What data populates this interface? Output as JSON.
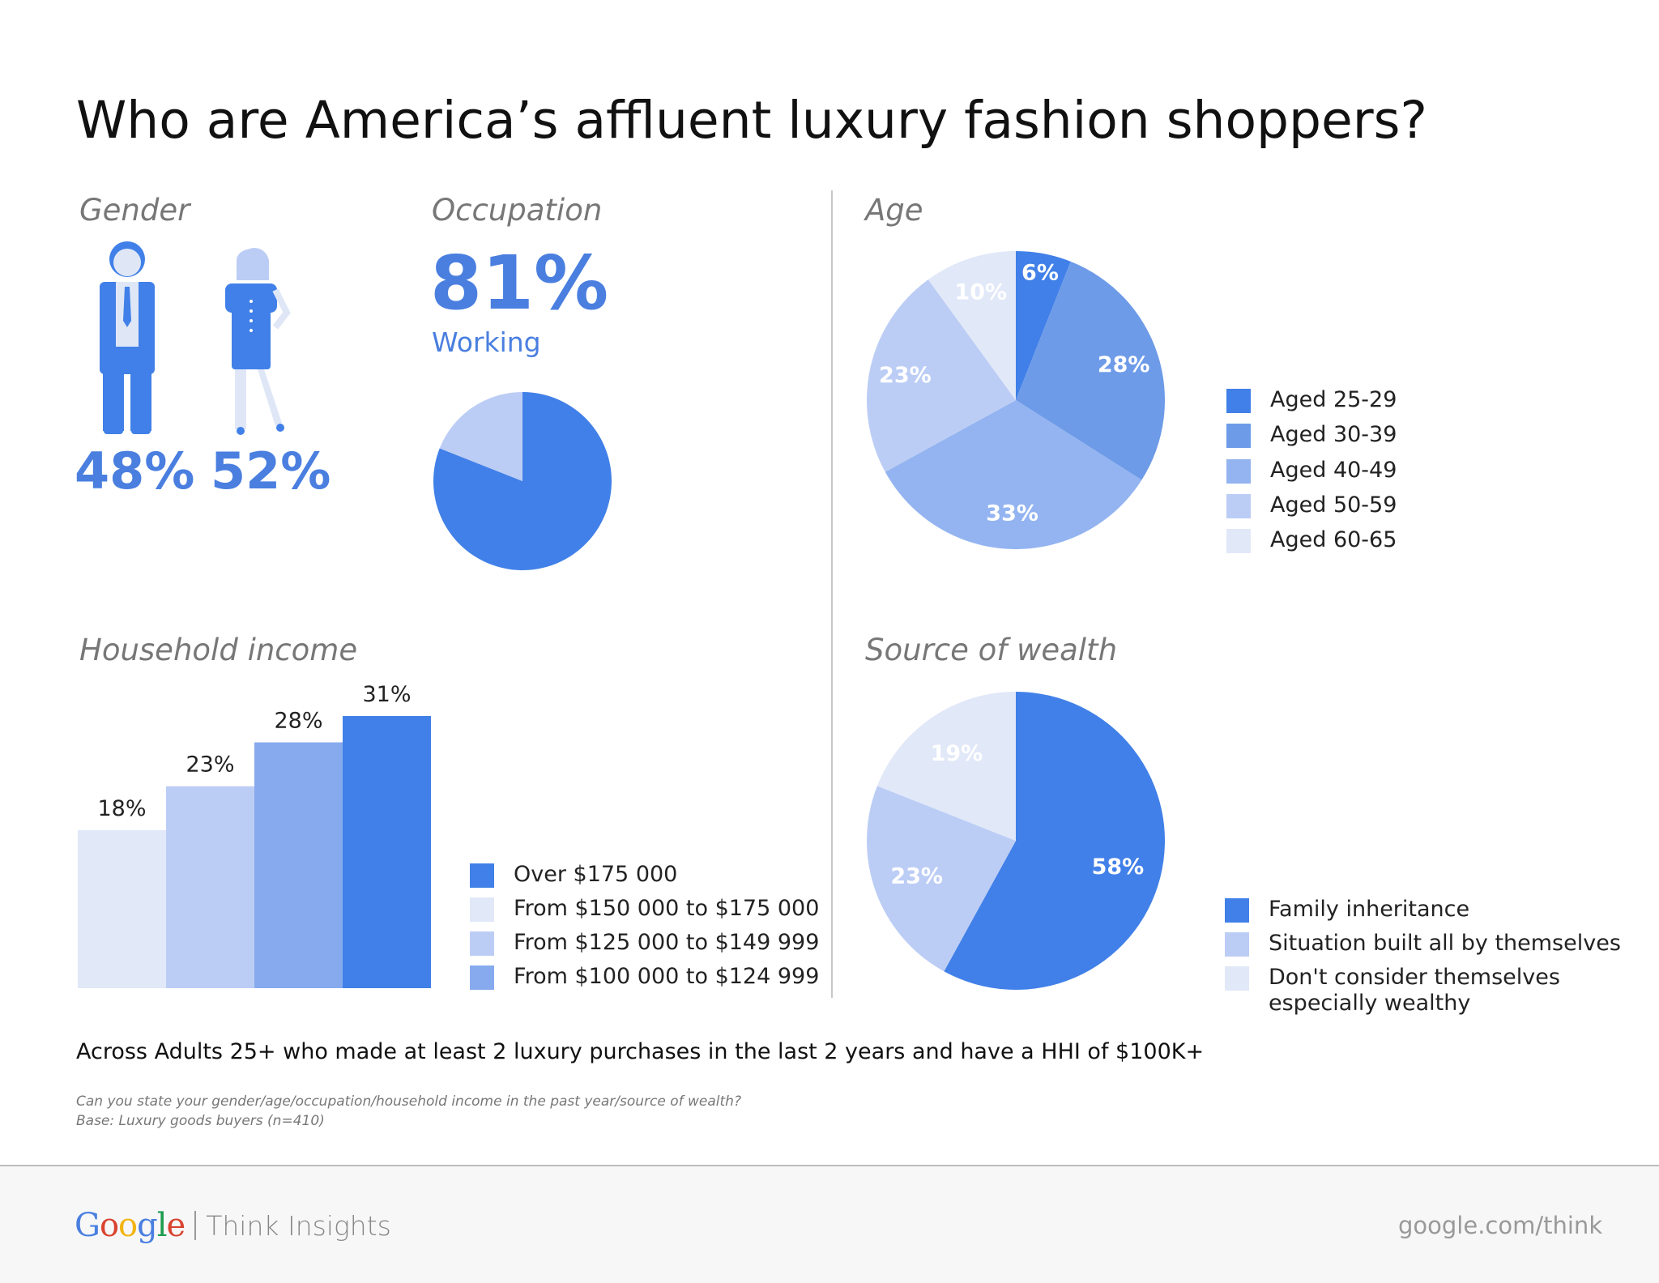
{
  "title": "Who are America’s affluent luxury fashion shoppers?",
  "gender": {
    "heading": "Gender",
    "male_pct": "48%",
    "female_pct": "52%"
  },
  "occupation": {
    "heading": "Occupation",
    "pct": "81%",
    "label": "Working"
  },
  "age_heading": "Age",
  "income_heading": "Household income",
  "wealth_heading": "Source of wealth",
  "colors": {
    "c1": "#4180e8",
    "c2": "#6d9be8",
    "c3": "#93b4f0",
    "c4": "#bccdf5",
    "c5": "#e1e8f8"
  },
  "chart_data": [
    {
      "id": "occupation",
      "type": "pie",
      "categories": [
        "Working",
        ""
      ],
      "values": [
        81,
        19
      ],
      "colors": [
        "#4180e8",
        "#bccdf5"
      ]
    },
    {
      "id": "age",
      "type": "pie",
      "categories": [
        "Aged 25-29",
        "Aged 30-39",
        "Aged 40-49",
        "Aged 50-59",
        "Aged 60-65"
      ],
      "values": [
        6,
        28,
        33,
        23,
        10
      ],
      "labels": [
        "6%",
        "28%",
        "33%",
        "23%",
        "10%"
      ],
      "colors": [
        "#4180e8",
        "#6d9be8",
        "#93b4f0",
        "#bccdf5",
        "#e1e8f8"
      ],
      "legend": "right"
    },
    {
      "id": "income",
      "type": "bar",
      "categories": [
        "From $150 000 to $175 000",
        "From $125 000 to $149 999",
        "From $100 000 to $124 999",
        "Over $175 000"
      ],
      "values": [
        18,
        23,
        28,
        31
      ],
      "labels": [
        "18%",
        "23%",
        "28%",
        "31%"
      ],
      "colors": [
        "#e1e8f8",
        "#bccdf5",
        "#86aaed",
        "#4180e8"
      ],
      "legend_order": [
        {
          "label": "Over $175 000",
          "color": "#4180e8"
        },
        {
          "label": "From $150 000 to $175 000",
          "color": "#e1e8f8"
        },
        {
          "label": "From $125 000 to $149 999",
          "color": "#bccdf5"
        },
        {
          "label": "From $100 000 to $124 999",
          "color": "#86aaed"
        }
      ],
      "ylim": [
        0,
        31
      ]
    },
    {
      "id": "wealth",
      "type": "pie",
      "categories": [
        "Family inheritance",
        "Situation built all by themselves",
        "Don't consider themselves especially wealthy"
      ],
      "values": [
        58,
        23,
        19
      ],
      "labels": [
        "58%",
        "23%",
        "19%"
      ],
      "colors": [
        "#4180e8",
        "#bccdf5",
        "#e1e8f8"
      ],
      "legend": "right"
    }
  ],
  "age_legend": [
    "Aged 25-29",
    "Aged 30-39",
    "Aged 40-49",
    "Aged 50-59",
    "Aged 60-65"
  ],
  "income_legend": [
    "Over $175 000",
    "From $150 000 to $175 000",
    "From $125 000 to $149 999",
    "From $100 000 to $124 999"
  ],
  "wealth_legend": [
    "Family inheritance",
    "Situation built all by themselves",
    "Don't consider themselves especially wealthy"
  ],
  "note": "Across Adults 25+ who made at least 2 luxury purchases in the last 2 years and have a HHI of $100K+",
  "fine_print": [
    "Can you state your gender/age/occupation/household income in the past year/source of wealth?",
    "Base: Luxury goods buyers (n=410)"
  ],
  "footer": {
    "logo_text": "Google",
    "product": "Think Insights",
    "url": "google.com/think"
  }
}
